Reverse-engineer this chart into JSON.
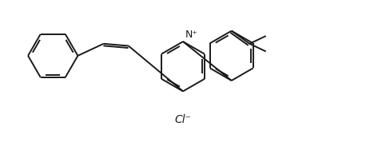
{
  "bg_color": "#ffffff",
  "line_color": "#1a1a1a",
  "line_width": 1.4,
  "text_color": "#1a1a1a",
  "cl_label": "Cl⁻",
  "n_plus_label": "N⁺",
  "font_size_cl": 10,
  "font_size_n": 9,
  "figsize": [
    4.58,
    1.88
  ],
  "dpi": 100
}
